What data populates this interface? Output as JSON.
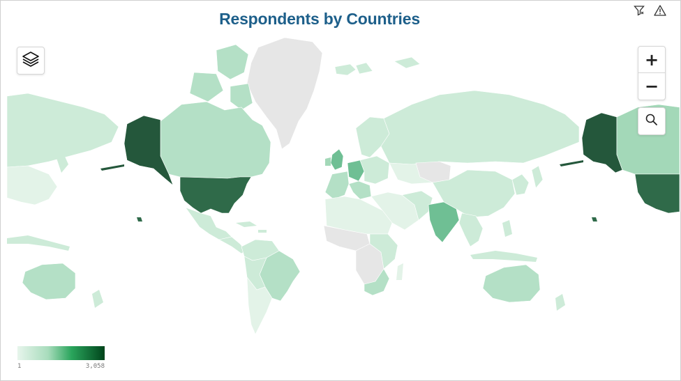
{
  "title": "Respondents by Countries",
  "toolbar": {
    "filter_icon": "filter-icon",
    "warning_icon": "warning-icon"
  },
  "map_controls": {
    "layers_icon": "layers-icon",
    "zoom_in_label": "+",
    "zoom_out_label": "−",
    "search_icon": "search-icon"
  },
  "legend": {
    "min_label": "1",
    "max_label": "3,058",
    "color_low": "#e7f5ec",
    "color_high": "#00441b"
  },
  "colors": {
    "title": "#1d5f8a",
    "no_data": "#e6e6e6",
    "very_low": "#e3f3e8",
    "low": "#cdebd8",
    "low_mid": "#b4e0c6",
    "mid": "#a3d8b8",
    "mid_high": "#6fbf94",
    "high": "#2f6a49",
    "very_high": "#24573b"
  }
}
